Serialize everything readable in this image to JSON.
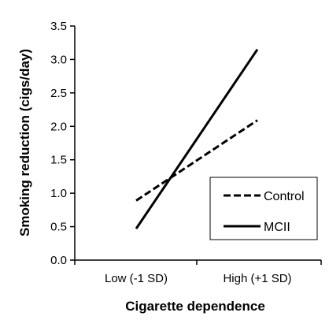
{
  "chart_data": {
    "type": "line",
    "title": "",
    "xlabel": "Cigarette dependence",
    "ylabel": "Smoking reduction (cigs/day)",
    "categories": [
      "Low (-1 SD)",
      "High (+1 SD)"
    ],
    "ylim": [
      0,
      3.5
    ],
    "yticks": [
      "0.0",
      "0.5",
      "1.0",
      "1.5",
      "2.0",
      "2.5",
      "3.0",
      "3.5"
    ],
    "grid": false,
    "legend_position": "lower-right",
    "series": [
      {
        "name": "Control",
        "values": [
          0.89,
          2.09
        ],
        "style": "dashed",
        "color": "#000000"
      },
      {
        "name": "MCII",
        "values": [
          0.47,
          3.15
        ],
        "style": "solid",
        "color": "#000000"
      }
    ]
  }
}
